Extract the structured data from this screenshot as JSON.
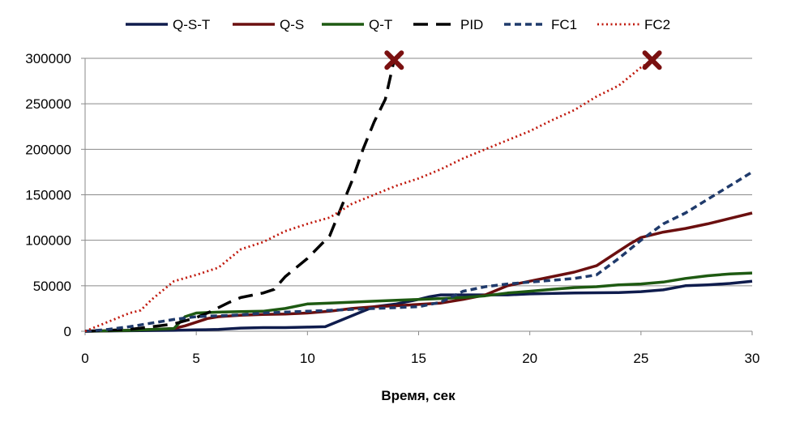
{
  "chart_data": {
    "type": "line",
    "title": "",
    "xlabel": "Время, сек",
    "ylabel": "",
    "xlim": [
      0,
      30
    ],
    "ylim": [
      0,
      300000
    ],
    "xticks": [
      0,
      5,
      10,
      15,
      20,
      25,
      30
    ],
    "yticks": [
      0,
      50000,
      100000,
      150000,
      200000,
      250000,
      300000
    ],
    "xtick_labels": [
      "0",
      "5",
      "10",
      "15",
      "20",
      "25",
      "30"
    ],
    "ytick_labels": [
      "0",
      "50000",
      "100000",
      "150000",
      "200000",
      "250000",
      "300000"
    ],
    "grid": "horizontal",
    "legend_position": "top",
    "series": [
      {
        "name": "Q-S-T",
        "color": "#0f1c4d",
        "style": "solid",
        "x": [
          0,
          2,
          4,
          5,
          6,
          7,
          8,
          9,
          10,
          10.8,
          11.5,
          12,
          12.5,
          13,
          14,
          15,
          15.5,
          16,
          17,
          18,
          19,
          20,
          22,
          24,
          25,
          26,
          27,
          28,
          29,
          30
        ],
        "y": [
          0,
          500,
          1000,
          1500,
          2000,
          3500,
          4000,
          4000,
          4500,
          5000,
          12000,
          17000,
          22000,
          27000,
          30000,
          35000,
          38000,
          40000,
          40000,
          40000,
          40000,
          41000,
          42000,
          42500,
          43500,
          45500,
          50000,
          51000,
          52500,
          55000
        ]
      },
      {
        "name": "Q-S",
        "color": "#6b0f0f",
        "style": "solid",
        "x": [
          0,
          2,
          3,
          4,
          4.5,
          5,
          5.5,
          6,
          7,
          8,
          9,
          10,
          11,
          12,
          13,
          14,
          15,
          16,
          17,
          18,
          19,
          20,
          21,
          22,
          23,
          24,
          24.5,
          25,
          26,
          27,
          28,
          29,
          30
        ],
        "y": [
          0,
          1000,
          2000,
          3000,
          6000,
          10000,
          14000,
          16000,
          17500,
          18500,
          19000,
          20000,
          22000,
          25000,
          27000,
          28000,
          29500,
          31000,
          35000,
          40000,
          50000,
          55000,
          60000,
          65000,
          72000,
          88000,
          96000,
          103000,
          109000,
          113000,
          118000,
          124000,
          130000
        ]
      },
      {
        "name": "Q-T",
        "color": "#1e5a12",
        "style": "solid",
        "x": [
          0,
          2,
          4,
          4.5,
          5,
          6,
          7,
          8,
          9,
          10,
          11,
          12,
          13,
          14,
          15,
          16,
          17,
          18,
          19,
          20,
          21,
          22,
          23,
          24,
          25,
          26,
          27,
          28,
          29,
          30
        ],
        "y": [
          0,
          1000,
          3000,
          16000,
          20000,
          21000,
          21500,
          22000,
          25000,
          30000,
          31000,
          32000,
          33000,
          34000,
          35000,
          36000,
          37000,
          39000,
          42000,
          44000,
          46000,
          48000,
          49000,
          51000,
          52000,
          54000,
          58000,
          61000,
          63000,
          64000
        ]
      },
      {
        "name": "PID",
        "color": "#000000",
        "style": "dash",
        "x": [
          0,
          2,
          3,
          4,
          5,
          5.5,
          6,
          6.5,
          7,
          8,
          8.5,
          9,
          10,
          11,
          11.5,
          12,
          12.5,
          13,
          13.5,
          13.9
        ],
        "y": [
          0,
          2000,
          5000,
          8000,
          15000,
          20000,
          26000,
          32000,
          37000,
          42000,
          46000,
          60000,
          80000,
          105000,
          135000,
          165000,
          200000,
          230000,
          255000,
          298000
        ]
      },
      {
        "name": "FC1",
        "color": "#1f3a6b",
        "style": "shortdash",
        "x": [
          0,
          1,
          2,
          3,
          4,
          5,
          6,
          7,
          8,
          9,
          10,
          11,
          12,
          13,
          14,
          15,
          16,
          16.5,
          17,
          18,
          19,
          20,
          21,
          22,
          23,
          24,
          25,
          26,
          27,
          28,
          29,
          30
        ],
        "y": [
          0,
          2000,
          5000,
          9000,
          13000,
          16000,
          17000,
          18000,
          20000,
          21000,
          22000,
          23000,
          24000,
          25000,
          26000,
          27000,
          32000,
          38000,
          44000,
          49000,
          52000,
          54000,
          56000,
          58000,
          62000,
          80000,
          100000,
          118000,
          130000,
          145000,
          160000,
          175000
        ]
      },
      {
        "name": "FC2",
        "color": "#c0180c",
        "style": "dot",
        "x": [
          0,
          1,
          2,
          2.5,
          3,
          4,
          5,
          6,
          7,
          8,
          9,
          10,
          11,
          12,
          13,
          14,
          15,
          16,
          17,
          18,
          19,
          20,
          21,
          22,
          23,
          24,
          25,
          25.5
        ],
        "y": [
          0,
          10000,
          20000,
          23000,
          35000,
          55000,
          62000,
          70000,
          90000,
          98000,
          110000,
          118000,
          125000,
          140000,
          150000,
          160000,
          168000,
          178000,
          190000,
          200000,
          210000,
          220000,
          232000,
          243000,
          258000,
          270000,
          290000,
          298000
        ]
      }
    ],
    "markers": [
      {
        "series": "PID",
        "x": 13.9,
        "y": 298000,
        "symbol": "x",
        "color": "#7a1010"
      },
      {
        "series": "FC2",
        "x": 25.5,
        "y": 298000,
        "symbol": "x",
        "color": "#7a1010"
      }
    ]
  }
}
